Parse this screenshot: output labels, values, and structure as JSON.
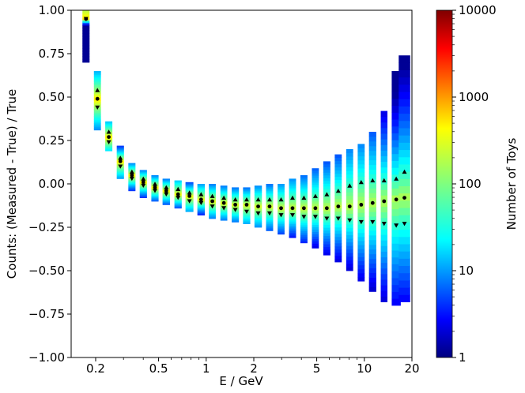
{
  "chart_data": {
    "type": "heatmap",
    "xlabel": "E / GeV",
    "ylabel": "Counts: (Measured - True) / True",
    "colorbar_label": "Number of Toys",
    "x_scale": "log",
    "xlim": [
      0.14,
      20
    ],
    "ylim": [
      -1.0,
      1.0
    ],
    "x_ticks": [
      {
        "value": 0.2,
        "label": "0.2"
      },
      {
        "value": 0.5,
        "label": "0.5"
      },
      {
        "value": 1,
        "label": "1"
      },
      {
        "value": 2,
        "label": "2"
      },
      {
        "value": 5,
        "label": "5"
      },
      {
        "value": 10,
        "label": "10"
      },
      {
        "value": 20,
        "label": "20"
      }
    ],
    "y_ticks": [
      {
        "value": 1.0,
        "label": "1.00"
      },
      {
        "value": 0.75,
        "label": "0.75"
      },
      {
        "value": 0.5,
        "label": "0.50"
      },
      {
        "value": 0.25,
        "label": "0.25"
      },
      {
        "value": 0.0,
        "label": "0.00"
      },
      {
        "value": -0.25,
        "label": "−0.25"
      },
      {
        "value": -0.5,
        "label": "−0.50"
      },
      {
        "value": -0.75,
        "label": "−0.75"
      },
      {
        "value": -1.0,
        "label": "−1.00"
      }
    ],
    "colorbar": {
      "scale": "log",
      "range": [
        1,
        10000
      ],
      "colormap": "jet",
      "ticks": [
        {
          "value": 1,
          "label": "1"
        },
        {
          "value": 10,
          "label": "10"
        },
        {
          "value": 100,
          "label": "100"
        },
        {
          "value": 1000,
          "label": "1000"
        },
        {
          "value": 10000,
          "label": "10000"
        }
      ]
    },
    "bins": [
      {
        "x_low": 0.165,
        "x_high": 0.183,
        "median": 0.95,
        "upper": 1.02,
        "lower": 0.95,
        "y_low": 0.7,
        "y_high": 1.0
      },
      {
        "x_low": 0.195,
        "x_high": 0.216,
        "median": 0.49,
        "upper": 0.54,
        "lower": 0.44,
        "y_low": 0.31,
        "y_high": 0.65
      },
      {
        "x_low": 0.23,
        "x_high": 0.255,
        "median": 0.27,
        "upper": 0.3,
        "lower": 0.24,
        "y_low": 0.19,
        "y_high": 0.36
      },
      {
        "x_low": 0.272,
        "x_high": 0.302,
        "median": 0.13,
        "upper": 0.15,
        "lower": 0.1,
        "y_low": 0.03,
        "y_high": 0.22
      },
      {
        "x_low": 0.322,
        "x_high": 0.357,
        "median": 0.05,
        "upper": 0.07,
        "lower": 0.03,
        "y_low": -0.04,
        "y_high": 0.12
      },
      {
        "x_low": 0.38,
        "x_high": 0.422,
        "median": 0.01,
        "upper": 0.03,
        "lower": -0.01,
        "y_low": -0.08,
        "y_high": 0.08
      },
      {
        "x_low": 0.45,
        "x_high": 0.5,
        "median": -0.02,
        "upper": 0.0,
        "lower": -0.04,
        "y_low": -0.1,
        "y_high": 0.05
      },
      {
        "x_low": 0.53,
        "x_high": 0.59,
        "median": -0.04,
        "upper": -0.02,
        "lower": -0.06,
        "y_low": -0.12,
        "y_high": 0.03
      },
      {
        "x_low": 0.63,
        "x_high": 0.7,
        "median": -0.06,
        "upper": -0.03,
        "lower": -0.08,
        "y_low": -0.14,
        "y_high": 0.02
      },
      {
        "x_low": 0.74,
        "x_high": 0.83,
        "median": -0.07,
        "upper": -0.05,
        "lower": -0.1,
        "y_low": -0.16,
        "y_high": 0.01
      },
      {
        "x_low": 0.88,
        "x_high": 0.98,
        "median": -0.09,
        "upper": -0.06,
        "lower": -0.11,
        "y_low": -0.18,
        "y_high": 0.0
      },
      {
        "x_low": 1.04,
        "x_high": 1.15,
        "median": -0.1,
        "upper": -0.07,
        "lower": -0.13,
        "y_low": -0.2,
        "y_high": 0.0
      },
      {
        "x_low": 1.23,
        "x_high": 1.36,
        "median": -0.11,
        "upper": -0.08,
        "lower": -0.14,
        "y_low": -0.21,
        "y_high": -0.01
      },
      {
        "x_low": 1.45,
        "x_high": 1.61,
        "median": -0.12,
        "upper": -0.09,
        "lower": -0.15,
        "y_low": -0.22,
        "y_high": -0.02
      },
      {
        "x_low": 1.71,
        "x_high": 1.9,
        "median": -0.12,
        "upper": -0.09,
        "lower": -0.16,
        "y_low": -0.23,
        "y_high": -0.02
      },
      {
        "x_low": 2.02,
        "x_high": 2.25,
        "median": -0.13,
        "upper": -0.09,
        "lower": -0.17,
        "y_low": -0.25,
        "y_high": -0.01
      },
      {
        "x_low": 2.39,
        "x_high": 2.65,
        "median": -0.13,
        "upper": -0.09,
        "lower": -0.17,
        "y_low": -0.27,
        "y_high": 0.0
      },
      {
        "x_low": 2.83,
        "x_high": 3.13,
        "median": -0.14,
        "upper": -0.09,
        "lower": -0.18,
        "y_low": -0.29,
        "y_high": 0.0
      },
      {
        "x_low": 3.34,
        "x_high": 3.7,
        "median": -0.14,
        "upper": -0.08,
        "lower": -0.18,
        "y_low": -0.31,
        "y_high": 0.03
      },
      {
        "x_low": 3.94,
        "x_high": 4.37,
        "median": -0.14,
        "upper": -0.08,
        "lower": -0.19,
        "y_low": -0.34,
        "y_high": 0.05
      },
      {
        "x_low": 4.66,
        "x_high": 5.16,
        "median": -0.14,
        "upper": -0.07,
        "lower": -0.19,
        "y_low": -0.37,
        "y_high": 0.09
      },
      {
        "x_low": 5.5,
        "x_high": 6.1,
        "median": -0.14,
        "upper": -0.06,
        "lower": -0.2,
        "y_low": -0.41,
        "y_high": 0.13
      },
      {
        "x_low": 6.5,
        "x_high": 7.2,
        "median": -0.13,
        "upper": -0.04,
        "lower": -0.2,
        "y_low": -0.45,
        "y_high": 0.17
      },
      {
        "x_low": 7.68,
        "x_high": 8.5,
        "median": -0.13,
        "upper": -0.01,
        "lower": -0.21,
        "y_low": -0.5,
        "y_high": 0.2
      },
      {
        "x_low": 9.08,
        "x_high": 10.05,
        "median": -0.12,
        "upper": 0.01,
        "lower": -0.22,
        "y_low": -0.56,
        "y_high": 0.23
      },
      {
        "x_low": 10.7,
        "x_high": 11.9,
        "median": -0.11,
        "upper": 0.02,
        "lower": -0.22,
        "y_low": -0.62,
        "y_high": 0.3
      },
      {
        "x_low": 12.7,
        "x_high": 14.0,
        "median": -0.1,
        "upper": 0.02,
        "lower": -0.23,
        "y_low": -0.68,
        "y_high": 0.42
      },
      {
        "x_low": 14.9,
        "x_high": 17.0,
        "median": -0.09,
        "upper": 0.03,
        "lower": -0.24,
        "y_low": -0.7,
        "y_high": 0.65
      },
      {
        "x_low": 16.5,
        "x_high": 19.5,
        "median": -0.08,
        "upper": 0.07,
        "lower": -0.23,
        "y_low": -0.68,
        "y_high": 0.74
      }
    ]
  }
}
